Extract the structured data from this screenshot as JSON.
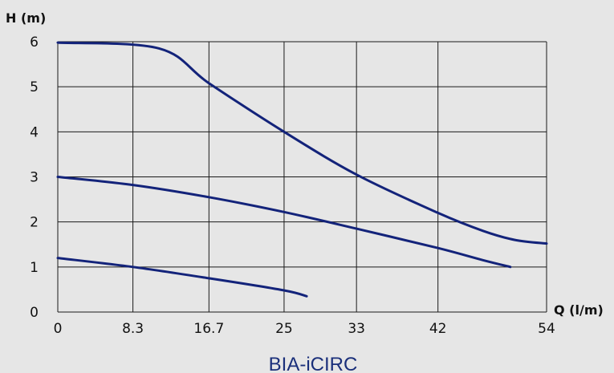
{
  "chart_data": {
    "type": "line",
    "ylabel": "H (m)",
    "xlabel": "Q (l/m)",
    "caption": "BIA-iCIRC",
    "x_ticks": [
      "0",
      "8.3",
      "16.7",
      "25",
      "33",
      "42",
      "54"
    ],
    "y_ticks": [
      "0",
      "1",
      "2",
      "3",
      "4",
      "5",
      "6"
    ],
    "xlim": [
      0,
      54
    ],
    "ylim": [
      0,
      6
    ],
    "grid": true,
    "line_color": "#13237a",
    "series": [
      {
        "points": [
          [
            0,
            5.98
          ],
          [
            11.2,
            5.85
          ],
          [
            16.7,
            5.08
          ],
          [
            25,
            4.0
          ],
          [
            33,
            3.05
          ],
          [
            42,
            2.2
          ],
          [
            47,
            1.8
          ],
          [
            50.5,
            1.6
          ],
          [
            54,
            1.52
          ]
        ]
      },
      {
        "points": [
          [
            0,
            3.0
          ],
          [
            8.3,
            2.82
          ],
          [
            16.7,
            2.55
          ],
          [
            25,
            2.22
          ],
          [
            33,
            1.85
          ],
          [
            42,
            1.42
          ],
          [
            47,
            1.15
          ],
          [
            50,
            1.0
          ]
        ]
      },
      {
        "points": [
          [
            0,
            1.2
          ],
          [
            8.3,
            1.0
          ],
          [
            16.7,
            0.75
          ],
          [
            25,
            0.48
          ],
          [
            27.5,
            0.35
          ]
        ]
      }
    ]
  }
}
